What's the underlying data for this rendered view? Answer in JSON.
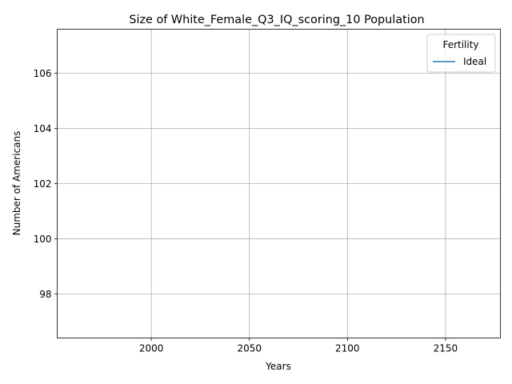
{
  "chart_data": {
    "type": "line",
    "title": "Size of White_Female_Q3_IQ_scoring_10 Population",
    "xlabel": "Years",
    "ylabel": "Number of Americans",
    "xlim": [
      1952,
      2178
    ],
    "ylim": [
      96.4,
      107.6
    ],
    "x_ticks": [
      2000,
      2050,
      2100,
      2150
    ],
    "x_tick_labels": [
      "2000",
      "2050",
      "2100",
      "2150"
    ],
    "y_ticks": [
      98,
      100,
      102,
      104,
      106
    ],
    "y_tick_labels": [
      "98",
      "100",
      "102",
      "104",
      "106"
    ],
    "grid": true,
    "legend": {
      "title": "Fertility",
      "placement": "top-right"
    },
    "series": [
      {
        "name": "Ideal",
        "color": "#1f77b4",
        "x": [],
        "y": []
      }
    ]
  }
}
